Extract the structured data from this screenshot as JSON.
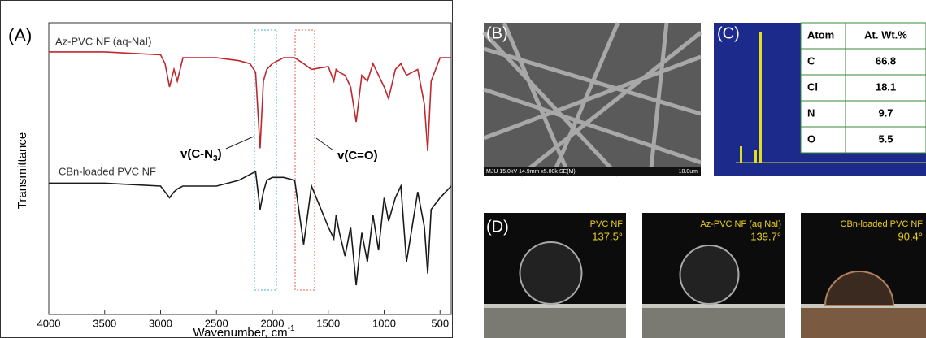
{
  "chart_data": {
    "type": "line",
    "panel_label": "(A)",
    "y_label": "Transmittance",
    "x_label": [
      "Wavenumber, cm",
      "-1"
    ],
    "xlim": [
      4000,
      400
    ],
    "ylim": [
      0,
      100
    ],
    "xticks": [
      4000,
      3500,
      3000,
      2500,
      2000,
      1500,
      1000,
      500
    ],
    "x": [
      4000,
      3500,
      3000,
      2960,
      2920,
      2880,
      2850,
      2800,
      2500,
      2300,
      2200,
      2150,
      2110,
      2080,
      2050,
      2000,
      1900,
      1800,
      1720,
      1650,
      1500,
      1450,
      1430,
      1400,
      1350,
      1300,
      1250,
      1200,
      1150,
      1100,
      1050,
      1000,
      960,
      900,
      850,
      800,
      700,
      640,
      610,
      580,
      500,
      400
    ],
    "series": [
      {
        "name": "Az-PVC NF (aq-NaI)",
        "color": "#c0272d",
        "values": [
          90,
          90,
          89,
          86,
          78,
          84,
          80,
          88,
          88,
          87,
          86,
          83,
          57,
          80,
          84,
          86,
          88,
          88,
          86,
          84,
          85,
          80,
          84,
          83,
          82,
          78,
          66,
          82,
          80,
          86,
          82,
          78,
          74,
          84,
          86,
          82,
          84,
          72,
          56,
          80,
          88,
          88
        ]
      },
      {
        "name": "CBn-loaded PVC NF",
        "color": "#1a1a1a",
        "values": [
          45,
          45,
          44,
          42,
          40,
          42,
          43,
          44,
          44,
          46,
          48,
          49,
          36,
          42,
          46,
          47,
          47,
          46,
          24,
          44,
          30,
          26,
          34,
          28,
          20,
          30,
          10,
          28,
          18,
          34,
          22,
          40,
          32,
          40,
          44,
          18,
          42,
          30,
          14,
          36,
          40,
          44
        ]
      }
    ],
    "annotations": [
      [
        "v(C-N",
        "3",
        ")"
      ],
      [
        "v(C=O)"
      ]
    ]
  },
  "panel_b": {
    "label": "(B)",
    "caption": "MJU 15.0kV 14.9mm x5.00k SE(M)",
    "scale": "10.0um"
  },
  "panel_c": {
    "label": "(C)",
    "table": {
      "header": [
        "Atom",
        "At. Wt.%"
      ],
      "rows": [
        [
          "C",
          "66.8"
        ],
        [
          "Cl",
          "18.1"
        ],
        [
          "N",
          "9.7"
        ],
        [
          "O",
          "5.5"
        ]
      ]
    }
  },
  "panel_d": {
    "label": "(D)",
    "photos": [
      {
        "name": "PVC NF",
        "angle": "137.5°"
      },
      {
        "name": "Az-PVC NF (aq NaI)",
        "angle": "139.7°"
      },
      {
        "name": "CBn-loaded PVC NF",
        "angle": "90.4°"
      }
    ]
  }
}
